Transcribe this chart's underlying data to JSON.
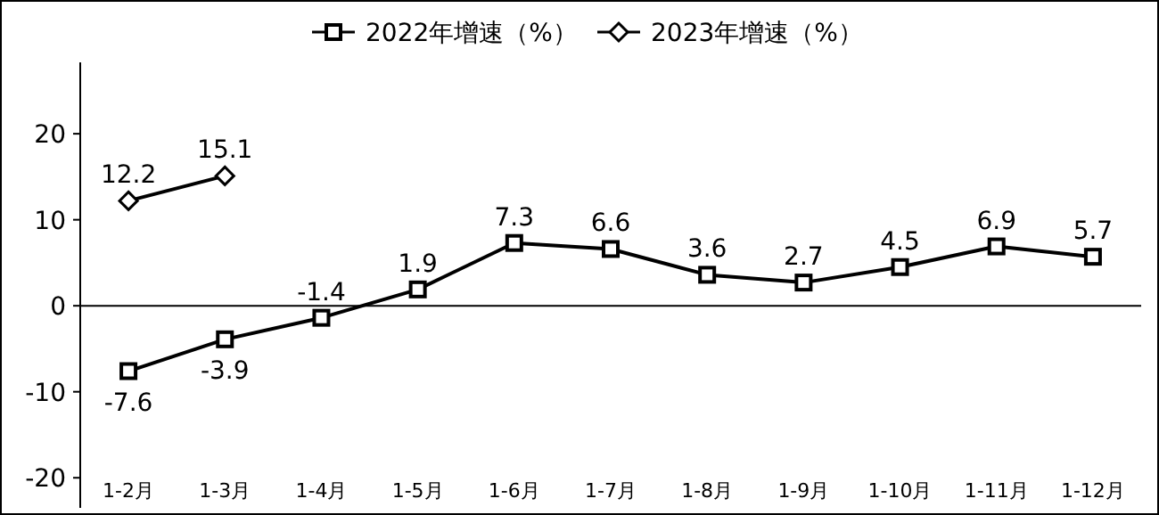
{
  "chart_data": {
    "type": "line",
    "categories": [
      "1-2月",
      "1-3月",
      "1-4月",
      "1-5月",
      "1-6月",
      "1-7月",
      "1-8月",
      "1-9月",
      "1-10月",
      "1-11月",
      "1-12月"
    ],
    "series": [
      {
        "name": "2022年增速（%）",
        "color": "#000000",
        "marker": "square",
        "values": [
          -7.6,
          -3.9,
          -1.4,
          1.9,
          7.3,
          6.6,
          3.6,
          2.7,
          4.5,
          6.9,
          5.7
        ]
      },
      {
        "name": "2023年增速（%）",
        "color": "#000000",
        "marker": "diamond",
        "values": [
          12.2,
          15.1,
          null,
          null,
          null,
          null,
          null,
          null,
          null,
          null,
          null
        ]
      }
    ],
    "ylim": [
      -23.5,
      28.3
    ],
    "yticks": [
      -20,
      -10,
      0,
      10,
      20
    ],
    "data_labels": true,
    "legend": "top",
    "line_style": "solid"
  }
}
